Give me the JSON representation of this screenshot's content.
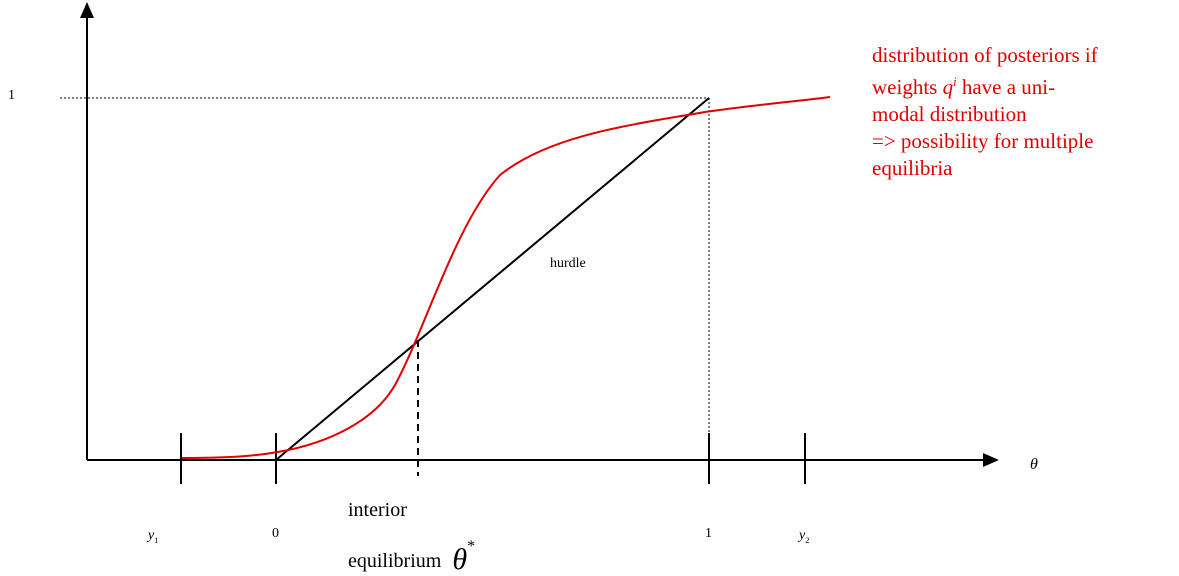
{
  "diagram": {
    "curve_color": "#e00000",
    "line_color": "#000000",
    "axis_labels": {
      "theta": "θ",
      "y_one": "1"
    },
    "x_ticks": {
      "y1_base": "y",
      "y1_sub": "1",
      "zero": "0",
      "one": "1",
      "y2_base": "y",
      "y2_sub": "2"
    },
    "hurdle_label": "hurdle",
    "equilibrium_label": {
      "line1": "interior",
      "line2": "equilibrium",
      "symbol": "θ",
      "symbol_sup": "*"
    },
    "annotation": {
      "line1": "distribution of posteriors if",
      "line2_pre": "weights ",
      "line2_var": "q",
      "line2_sup": "i",
      "line2_post": " have a uni-",
      "line3": "modal distribution",
      "line4": "=> possibility for multiple",
      "line5": "equilibria"
    }
  }
}
